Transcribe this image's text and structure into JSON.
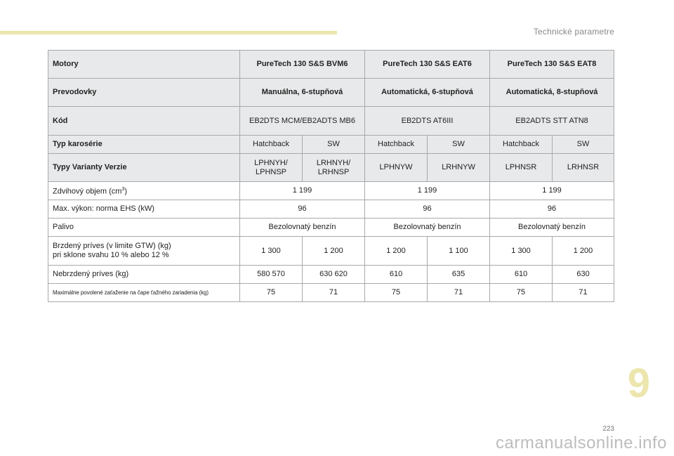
{
  "header": {
    "section_title": "Technické parametre"
  },
  "table": {
    "engines": {
      "label": "Motory",
      "values": [
        "PureTech 130 S&S BVM6",
        "PureTech 130 S&S EAT6",
        "PureTech 130 S&S EAT8"
      ]
    },
    "gearboxes": {
      "label": "Prevodovky",
      "values": [
        "Manuálna, 6-stupňová",
        "Automatická, 6-stupňová",
        "Automatická, 8-stupňová"
      ]
    },
    "codes": {
      "label": "Kód",
      "values": [
        "EB2DTS MCM/EB2ADTS MB6",
        "EB2DTS AT6III",
        "EB2ADTS STT ATN8"
      ]
    },
    "body_types": {
      "label": "Typ karosérie",
      "values": [
        "Hatchback",
        "SW",
        "Hatchback",
        "SW",
        "Hatchback",
        "SW"
      ]
    },
    "variants": {
      "label": "Typy Varianty Verzie",
      "values": [
        "LPHNYH/ LPHNSP",
        "LRHNYH/ LRHNSP",
        "LPHNYW",
        "LRHNYW",
        "LPHNSR",
        "LRHNSR"
      ]
    },
    "displacement": {
      "label": "Zdvihový objem (cm",
      "label_sup": "3",
      "label_end": ")",
      "values": [
        "1 199",
        "1 199",
        "1 199"
      ]
    },
    "power": {
      "label": "Max. výkon: norma EHS (kW)",
      "values": [
        "96",
        "96",
        "96"
      ]
    },
    "fuel": {
      "label": "Palivo",
      "values": [
        "Bezolovnatý benzín",
        "Bezolovnatý benzín",
        "Bezolovnatý benzín"
      ]
    },
    "braked_trailer": {
      "label_line1": "Brzdený príves (v limite GTW) (kg)",
      "label_line2": "pri sklone svahu 10 % alebo 12 %",
      "values": [
        "1 300",
        "1 200",
        "1 200",
        "1 100",
        "1 300",
        "1 200"
      ]
    },
    "unbraked_trailer": {
      "label": "Nebrzdený príves (kg)",
      "values": [
        "580 570",
        "630 620",
        "610",
        "635",
        "610",
        "630"
      ]
    },
    "towbar_load": {
      "label": "Maximálne povolené zaťaženie na čape ťažného zariadenia (kg)",
      "values": [
        "75",
        "71",
        "75",
        "71",
        "75",
        "71"
      ]
    }
  },
  "footer": {
    "chapter_number": "9",
    "page_number": "223",
    "watermark": "carmanualsonline.info"
  }
}
